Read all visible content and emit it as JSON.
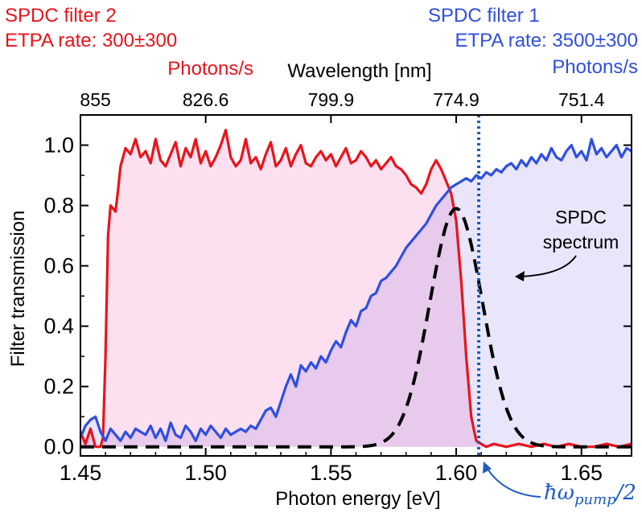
{
  "colors": {
    "filter2": "#e8141b",
    "filter1": "#2f4fe0",
    "filter2_fill": "#fde0f0",
    "filter1_fill": "#e9e6fb",
    "overlap_fill": "#eccdf5",
    "spdc": "#000000",
    "pump_line": "#1f5bbf"
  },
  "legend": {
    "filter2": {
      "name": "SPDC filter 2",
      "rate": "ETPA rate: 300±300",
      "unit": "Photons/s"
    },
    "filter1": {
      "name": "SPDC filter 1",
      "rate": "ETPA rate: 3500±300",
      "unit": "Photons/s"
    }
  },
  "annotations": {
    "spdc_line1": "SPDC",
    "spdc_line2": "spectrum",
    "pump": "ħω",
    "pump_sub": "pump",
    "pump_tail": "/2"
  },
  "chart_data": {
    "type": "line",
    "xlabel": "Photon energy [eV]",
    "ylabel": "Filter transmission",
    "top_xlabel": "Wavelength [nm]",
    "xlim": [
      1.45,
      1.67
    ],
    "ylim": [
      -0.03,
      1.1
    ],
    "x_ticks": [
      1.45,
      1.5,
      1.55,
      1.6,
      1.65
    ],
    "x_tick_labels": [
      "1.45",
      "1.50",
      "1.55",
      "1.60",
      "1.65"
    ],
    "y_ticks": [
      0.0,
      0.2,
      0.4,
      0.6,
      0.8,
      1.0
    ],
    "y_tick_labels": [
      "0.0",
      "0.2",
      "0.4",
      "0.6",
      "0.8",
      "1.0"
    ],
    "top_ticks": [
      {
        "energy": 1.4502,
        "label": "855"
      },
      {
        "energy": 1.5,
        "label": "826.6"
      },
      {
        "energy": 1.55,
        "label": "799.9"
      },
      {
        "energy": 1.6,
        "label": "774.9"
      },
      {
        "energy": 1.65,
        "label": "751.4"
      }
    ],
    "pump_half_energy": 1.609,
    "series": [
      {
        "name": "SPDC filter 2",
        "x": [
          1.45,
          1.452,
          1.454,
          1.456,
          1.458,
          1.459,
          1.46,
          1.461,
          1.462,
          1.464,
          1.465,
          1.466,
          1.468,
          1.47,
          1.472,
          1.474,
          1.476,
          1.478,
          1.48,
          1.482,
          1.484,
          1.486,
          1.488,
          1.49,
          1.492,
          1.494,
          1.496,
          1.498,
          1.5,
          1.502,
          1.504,
          1.506,
          1.508,
          1.51,
          1.512,
          1.514,
          1.516,
          1.518,
          1.52,
          1.522,
          1.524,
          1.526,
          1.528,
          1.53,
          1.532,
          1.534,
          1.536,
          1.538,
          1.54,
          1.542,
          1.544,
          1.546,
          1.548,
          1.55,
          1.552,
          1.554,
          1.556,
          1.558,
          1.56,
          1.562,
          1.564,
          1.566,
          1.568,
          1.57,
          1.572,
          1.574,
          1.576,
          1.578,
          1.58,
          1.582,
          1.584,
          1.586,
          1.588,
          1.59,
          1.592,
          1.594,
          1.596,
          1.598,
          1.6,
          1.602,
          1.604,
          1.606,
          1.608,
          1.61,
          1.612,
          1.615,
          1.62,
          1.625,
          1.63,
          1.635,
          1.64,
          1.645,
          1.65,
          1.655,
          1.66,
          1.665,
          1.67
        ],
        "y": [
          0.05,
          0.01,
          0.06,
          0.0,
          0.0,
          0.03,
          0.3,
          0.7,
          0.8,
          0.78,
          0.85,
          0.93,
          0.99,
          0.97,
          1.02,
          0.96,
          0.98,
          0.94,
          1.02,
          0.95,
          0.93,
          0.97,
          1.01,
          0.93,
          0.99,
          0.96,
          1.02,
          0.94,
          0.98,
          0.93,
          0.96,
          1.0,
          1.05,
          0.96,
          0.93,
          0.95,
          1.02,
          0.94,
          0.96,
          0.92,
          0.97,
          1.01,
          0.93,
          0.95,
          0.99,
          0.93,
          0.97,
          1.0,
          0.94,
          0.93,
          0.96,
          0.98,
          0.95,
          0.97,
          0.93,
          0.96,
          0.99,
          0.94,
          0.95,
          0.98,
          0.96,
          0.93,
          0.95,
          0.92,
          0.94,
          0.96,
          0.93,
          0.92,
          0.9,
          0.87,
          0.86,
          0.84,
          0.87,
          0.92,
          0.95,
          0.92,
          0.88,
          0.84,
          0.75,
          0.55,
          0.3,
          0.1,
          0.02,
          0.01,
          0.0,
          0.01,
          0.0,
          0.01,
          0.0,
          0.01,
          0.0,
          0.01,
          0.0,
          0.0,
          0.01,
          0.0,
          0.01
        ]
      },
      {
        "name": "SPDC filter 1",
        "x": [
          1.45,
          1.452,
          1.454,
          1.456,
          1.458,
          1.46,
          1.462,
          1.464,
          1.466,
          1.468,
          1.47,
          1.472,
          1.474,
          1.476,
          1.478,
          1.48,
          1.482,
          1.484,
          1.486,
          1.488,
          1.49,
          1.492,
          1.494,
          1.496,
          1.498,
          1.5,
          1.502,
          1.504,
          1.506,
          1.508,
          1.51,
          1.512,
          1.514,
          1.516,
          1.518,
          1.52,
          1.522,
          1.524,
          1.526,
          1.528,
          1.53,
          1.532,
          1.534,
          1.536,
          1.538,
          1.54,
          1.542,
          1.544,
          1.546,
          1.548,
          1.55,
          1.552,
          1.554,
          1.556,
          1.558,
          1.56,
          1.562,
          1.564,
          1.566,
          1.568,
          1.57,
          1.572,
          1.574,
          1.576,
          1.578,
          1.58,
          1.582,
          1.584,
          1.586,
          1.588,
          1.59,
          1.592,
          1.594,
          1.596,
          1.598,
          1.6,
          1.602,
          1.604,
          1.606,
          1.608,
          1.61,
          1.612,
          1.614,
          1.616,
          1.618,
          1.62,
          1.622,
          1.624,
          1.626,
          1.628,
          1.63,
          1.632,
          1.634,
          1.636,
          1.638,
          1.64,
          1.642,
          1.644,
          1.646,
          1.648,
          1.65,
          1.652,
          1.654,
          1.656,
          1.658,
          1.66,
          1.662,
          1.664,
          1.666,
          1.668,
          1.67
        ],
        "y": [
          0.03,
          0.07,
          0.09,
          0.1,
          0.05,
          0.02,
          0.06,
          0.04,
          0.02,
          0.05,
          0.03,
          0.06,
          0.05,
          0.04,
          0.07,
          0.03,
          0.06,
          0.02,
          0.08,
          0.04,
          0.03,
          0.07,
          0.05,
          0.02,
          0.06,
          0.04,
          0.07,
          0.05,
          0.03,
          0.06,
          0.04,
          0.05,
          0.06,
          0.05,
          0.07,
          0.06,
          0.09,
          0.12,
          0.13,
          0.1,
          0.15,
          0.2,
          0.24,
          0.2,
          0.27,
          0.25,
          0.28,
          0.26,
          0.3,
          0.28,
          0.32,
          0.35,
          0.33,
          0.38,
          0.42,
          0.4,
          0.45,
          0.46,
          0.5,
          0.51,
          0.55,
          0.56,
          0.58,
          0.6,
          0.63,
          0.66,
          0.68,
          0.7,
          0.72,
          0.74,
          0.77,
          0.8,
          0.82,
          0.84,
          0.86,
          0.87,
          0.88,
          0.89,
          0.88,
          0.9,
          0.89,
          0.91,
          0.9,
          0.92,
          0.91,
          0.93,
          0.94,
          0.92,
          0.95,
          0.93,
          0.96,
          0.94,
          0.97,
          0.95,
          0.99,
          0.96,
          0.95,
          0.98,
          1.0,
          0.96,
          0.98,
          0.95,
          1.02,
          0.97,
          0.99,
          0.96,
          0.98,
          1.0,
          0.96,
          0.99,
          0.98
        ]
      },
      {
        "name": "SPDC spectrum",
        "style": "dashed",
        "shape": "gaussian",
        "center": 1.6,
        "peak": 0.79,
        "sigma": 0.0105,
        "x_range": [
          1.45,
          1.67
        ]
      }
    ]
  }
}
